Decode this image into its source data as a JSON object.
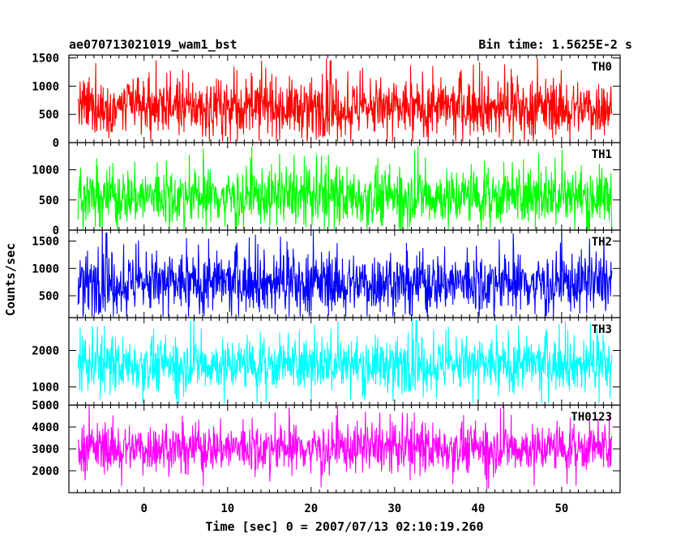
{
  "header": {
    "title": "ae070713021019_wam1_bst",
    "bin_time": "Bin time: 1.5625E-2 s"
  },
  "chart_data": {
    "type": "line",
    "title": "ae070713021019_wam1_bst",
    "xlabel": "Time [sec] 0 = 2007/07/13 02:10:19.260",
    "ylabel": "Counts/sec",
    "xlim": [
      -9,
      57
    ],
    "x_ticks": [
      0,
      10,
      20,
      30,
      40,
      50
    ],
    "x_tick_labels": [
      "0",
      "10",
      "20",
      "30",
      "40",
      "50"
    ],
    "x_range_data": [
      -7.9,
      56.0
    ],
    "bin_time_s": 0.015625,
    "panels": [
      {
        "name": "TH0",
        "color": "#ff0000",
        "ylim": [
          0,
          1550
        ],
        "yticks": [
          0,
          500,
          1000,
          1500
        ],
        "ytick_labels": [
          "0",
          "500",
          "1000",
          "1500"
        ],
        "base_level": 620,
        "spread": 440,
        "min": 20,
        "max": 1550
      },
      {
        "name": "TH1",
        "color": "#00ff00",
        "ylim": [
          0,
          1450
        ],
        "yticks": [
          0,
          500,
          1000
        ],
        "ytick_labels": [
          "0",
          "500",
          "1000"
        ],
        "base_level": 560,
        "spread": 420,
        "min": 10,
        "max": 1450
      },
      {
        "name": "TH2",
        "color": "#0000ff",
        "ylim": [
          100,
          1700
        ],
        "yticks": [
          500,
          1000,
          1500
        ],
        "ytick_labels": [
          "500",
          "1000",
          "1500"
        ],
        "base_level": 740,
        "spread": 480,
        "min": 120,
        "max": 1700
      },
      {
        "name": "TH3",
        "color": "#00ffff",
        "ylim": [
          500,
          2900
        ],
        "yticks": [
          1000,
          2000
        ],
        "ytick_labels": [
          "1000",
          "2000"
        ],
        "base_level": 1620,
        "spread": 640,
        "min": 550,
        "max": 2900
      },
      {
        "name": "TH0123",
        "color": "#ff00ff",
        "ylim": [
          1000,
          5000
        ],
        "yticks": [
          2000,
          3000,
          4000,
          5000
        ],
        "ytick_labels": [
          "2000",
          "3000",
          "4000",
          "5000"
        ],
        "base_level": 3050,
        "spread": 980,
        "min": 1100,
        "max": 5000
      }
    ]
  }
}
